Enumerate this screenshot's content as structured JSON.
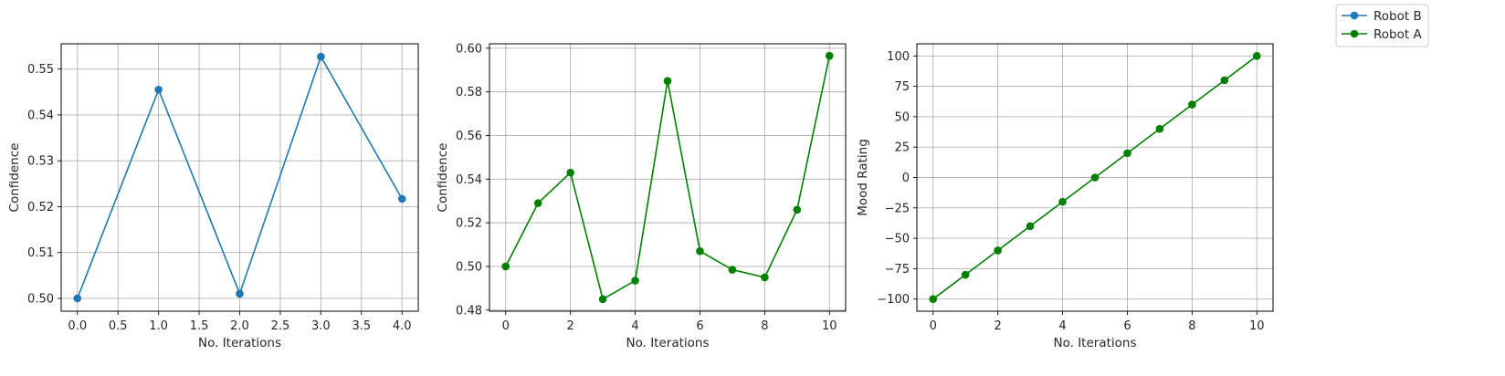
{
  "chart_data": [
    {
      "type": "line",
      "xlabel": "No. Iterations",
      "ylabel": "Confidence",
      "grid": true,
      "color": "#1f77b4",
      "x": [
        0,
        1,
        2,
        3,
        4
      ],
      "y": [
        0.5,
        0.5455,
        0.501,
        0.5527,
        0.5217
      ],
      "xlim": [
        -0.2,
        4.2
      ],
      "ylim": [
        0.4972,
        0.5555
      ],
      "xticks": [
        "0.0",
        "0.5",
        "1.0",
        "1.5",
        "2.0",
        "2.5",
        "3.0",
        "3.5",
        "4.0"
      ],
      "yticks": [
        "0.50",
        "0.51",
        "0.52",
        "0.53",
        "0.54",
        "0.55"
      ]
    },
    {
      "type": "line",
      "xlabel": "No. Iterations",
      "ylabel": "Confidence",
      "grid": true,
      "color": "#008000",
      "x": [
        0,
        1,
        2,
        3,
        4,
        5,
        6,
        7,
        8,
        9,
        10
      ],
      "y": [
        0.5,
        0.529,
        0.543,
        0.485,
        0.4935,
        0.585,
        0.507,
        0.4985,
        0.495,
        0.526,
        0.5965
      ],
      "xlim": [
        -0.5,
        10.5
      ],
      "ylim": [
        0.4795,
        0.602
      ],
      "xticks": [
        "0",
        "2",
        "4",
        "6",
        "8",
        "10"
      ],
      "yticks": [
        "0.48",
        "0.50",
        "0.52",
        "0.54",
        "0.56",
        "0.58",
        "0.60"
      ]
    },
    {
      "type": "line",
      "xlabel": "No. Iterations",
      "ylabel": "Mood Rating",
      "grid": true,
      "color": "#008000",
      "x": [
        0,
        1,
        2,
        3,
        4,
        5,
        6,
        7,
        8,
        9,
        10
      ],
      "y": [
        -100,
        -80,
        -60,
        -40,
        -20,
        0,
        20,
        40,
        60,
        80,
        100
      ],
      "xlim": [
        -0.5,
        10.5
      ],
      "ylim": [
        -110,
        110
      ],
      "xticks": [
        "0",
        "2",
        "4",
        "6",
        "8",
        "10"
      ],
      "yticks": [
        "−100",
        "−75",
        "−50",
        "−25",
        "0",
        "25",
        "50",
        "75",
        "100"
      ]
    }
  ],
  "legend": {
    "placement": "top-right",
    "entries": [
      {
        "name": "Robot B",
        "color": "#1f77b4"
      },
      {
        "name": "Robot A",
        "color": "#008000"
      }
    ]
  }
}
